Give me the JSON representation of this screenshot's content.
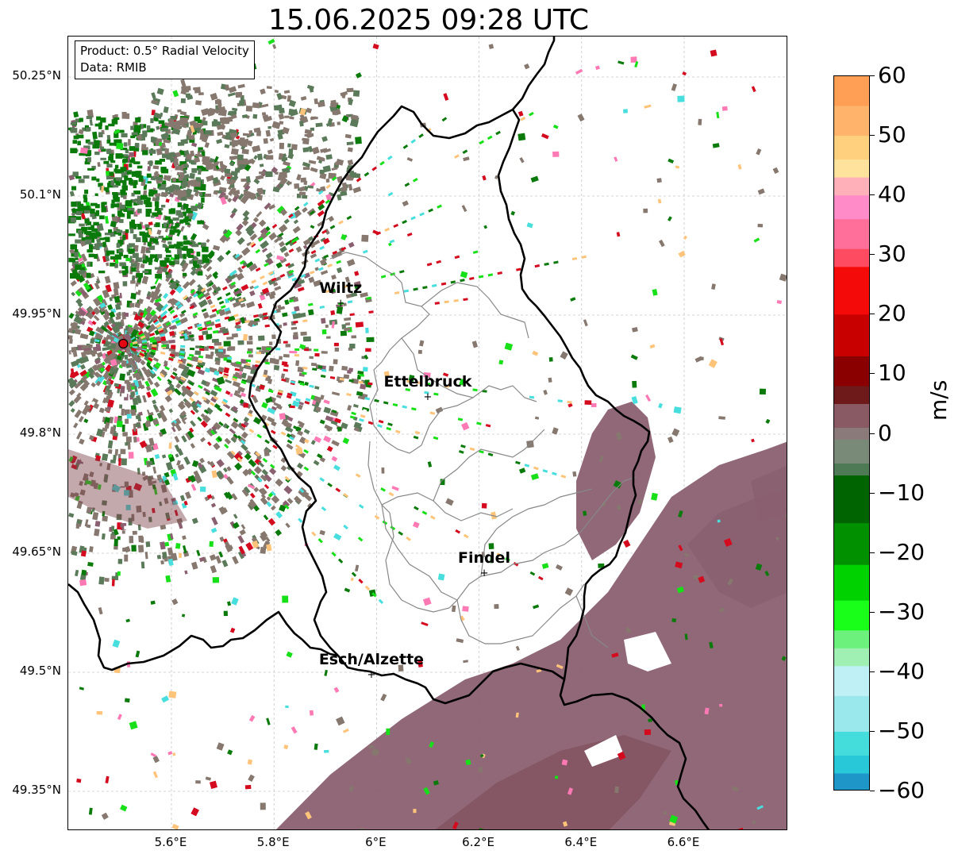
{
  "title": "15.06.2025 09:28 UTC",
  "info_box": {
    "product_line": "Product: 0.5° Radial Velocity",
    "data_line": "Data: RMIB"
  },
  "map": {
    "lat_ticks": [
      {
        "value": 50.25,
        "label": "50.25°N"
      },
      {
        "value": 50.1,
        "label": "50.1°N"
      },
      {
        "value": 49.95,
        "label": "49.95°N"
      },
      {
        "value": 49.8,
        "label": "49.8°N"
      },
      {
        "value": 49.65,
        "label": "49.65°N"
      },
      {
        "value": 49.5,
        "label": "49.5°N"
      },
      {
        "value": 49.35,
        "label": "49.35°N"
      }
    ],
    "lon_ticks": [
      {
        "value": 5.6,
        "label": "5.6°E"
      },
      {
        "value": 5.8,
        "label": "5.8°E"
      },
      {
        "value": 6.0,
        "label": "6°E"
      },
      {
        "value": 6.2,
        "label": "6.2°E"
      },
      {
        "value": 6.4,
        "label": "6.4°E"
      },
      {
        "value": 6.6,
        "label": "6.6°E"
      }
    ],
    "lat_range": [
      49.3,
      50.3
    ],
    "lon_range": [
      5.4,
      6.8
    ],
    "gridlines": "dashed",
    "cities": [
      {
        "name": "Wiltz",
        "lon": 5.93,
        "lat": 49.966
      },
      {
        "name": "Ettelbruck",
        "lon": 6.1,
        "lat": 49.848
      },
      {
        "name": "Findel",
        "lon": 6.21,
        "lat": 49.626
      },
      {
        "name": "Esch/Alzette",
        "lon": 5.99,
        "lat": 49.498
      }
    ],
    "radar_site": {
      "lon": 5.506,
      "lat": 49.914,
      "color": "#e30613"
    },
    "border_color": "#000000",
    "canton_color": "#888888"
  },
  "colorbar": {
    "label": "m/s",
    "min": -60,
    "max": 60,
    "ticks": [
      "60",
      "50",
      "40",
      "30",
      "20",
      "10",
      "0",
      "−10",
      "−20",
      "−30",
      "−40",
      "−50",
      "−60"
    ],
    "stops": [
      {
        "value": 60,
        "color": "#ff9e55"
      },
      {
        "value": 55,
        "color": "#ffb36b"
      },
      {
        "value": 50,
        "color": "#ffd07e"
      },
      {
        "value": 46,
        "color": "#ffe39c"
      },
      {
        "value": 43,
        "color": "#ffb0b8"
      },
      {
        "value": 40,
        "color": "#ff8cc8"
      },
      {
        "value": 36,
        "color": "#ff6f9a"
      },
      {
        "value": 31,
        "color": "#ff4b62"
      },
      {
        "value": 28,
        "color": "#f50a0a"
      },
      {
        "value": 20,
        "color": "#c80000"
      },
      {
        "value": 13,
        "color": "#8a0000"
      },
      {
        "value": 8,
        "color": "#6e1a1a"
      },
      {
        "value": 5,
        "color": "#8a5a64"
      },
      {
        "value": 1,
        "color": "#8a7a7a"
      },
      {
        "value": -1,
        "color": "#7a8a78"
      },
      {
        "value": -5,
        "color": "#4f7a56"
      },
      {
        "value": -7,
        "color": "#006400"
      },
      {
        "value": -15,
        "color": "#009000"
      },
      {
        "value": -22,
        "color": "#00d200"
      },
      {
        "value": -28,
        "color": "#1aff1a"
      },
      {
        "value": -33,
        "color": "#6cf27c"
      },
      {
        "value": -36,
        "color": "#a0f0b4"
      },
      {
        "value": -39,
        "color": "#bff0f5"
      },
      {
        "value": -44,
        "color": "#9be8ec"
      },
      {
        "value": -50,
        "color": "#45dcdc"
      },
      {
        "value": -54,
        "color": "#28c8d8"
      },
      {
        "value": -57,
        "color": "#1e96c8"
      },
      {
        "value": -60,
        "color": "#1f78c1"
      }
    ]
  },
  "velocity_colors": {
    "outbound_weak": "#8a6070",
    "zero": "#86786e",
    "inbound_weak": "#5a7a5a",
    "inbound_mod": "#0a7a0a",
    "inbound_strong": "#18e018",
    "red_strong": "#d40a1e",
    "cyan": "#48dede",
    "orange": "#ffc47a",
    "pink": "#ff7ab4"
  }
}
